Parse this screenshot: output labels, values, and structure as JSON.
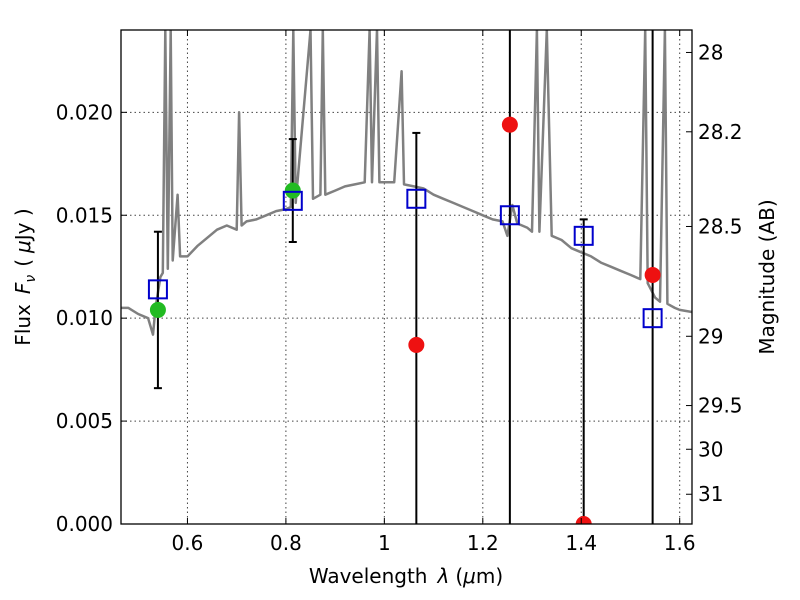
{
  "chart_data": {
    "type": "scatter",
    "xlabel_main": "Wavelength",
    "xlabel_symbol": "λ",
    "xlabel_unit_open": "(",
    "xlabel_unit_mu": "μ",
    "xlabel_unit_rest": "m)",
    "ylabel_main": "Flux",
    "ylabel_symbol": "F",
    "ylabel_subscript": "ν",
    "ylabel_unit_open": "(",
    "ylabel_unit_mu": "μ",
    "ylabel_unit_rest": "Jy )",
    "y2label": "Magnitude (AB)",
    "xlim": [
      0.465,
      1.625
    ],
    "ylim": [
      0.0,
      0.024
    ],
    "grid": true,
    "x_ticks": [
      {
        "value": 0.6,
        "label": "0.6"
      },
      {
        "value": 0.8,
        "label": "0.8"
      },
      {
        "value": 1.0,
        "label": "1"
      },
      {
        "value": 1.2,
        "label": "1.2"
      },
      {
        "value": 1.4,
        "label": "1.4"
      },
      {
        "value": 1.6,
        "label": "1.6"
      }
    ],
    "y_ticks": [
      {
        "value": 0.0,
        "label": "0.000"
      },
      {
        "value": 0.005,
        "label": "0.005"
      },
      {
        "value": 0.01,
        "label": "0.010"
      },
      {
        "value": 0.015,
        "label": "0.015"
      },
      {
        "value": 0.02,
        "label": "0.020"
      }
    ],
    "y2_ticks": [
      {
        "value": 28,
        "label": "28"
      },
      {
        "value": 28.2,
        "label": "28.2"
      },
      {
        "value": 28.5,
        "label": "28.5"
      },
      {
        "value": 29,
        "label": "29"
      },
      {
        "value": 29.5,
        "label": "29.5"
      },
      {
        "value": 30,
        "label": "30"
      },
      {
        "value": 31,
        "label": "31"
      }
    ],
    "model_points": [
      {
        "x": 0.54,
        "y": 0.0114
      },
      {
        "x": 0.814,
        "y": 0.0157
      },
      {
        "x": 1.065,
        "y": 0.0158
      },
      {
        "x": 1.255,
        "y": 0.015
      },
      {
        "x": 1.405,
        "y": 0.014
      },
      {
        "x": 1.545,
        "y": 0.01
      }
    ],
    "detections": [
      {
        "x": 0.54,
        "y": 0.0104
      },
      {
        "x": 0.814,
        "y": 0.0162
      }
    ],
    "upper_limits": [
      {
        "x": 1.065,
        "y": 0.0087
      },
      {
        "x": 1.255,
        "y": 0.0194
      },
      {
        "x": 1.405,
        "y": 0.0
      },
      {
        "x": 1.545,
        "y": 0.0121
      }
    ],
    "error_bars": [
      {
        "x": 0.54,
        "low": 0.0066,
        "high": 0.0142
      },
      {
        "x": 0.814,
        "low": 0.0137,
        "high": 0.0187
      },
      {
        "x": 1.065,
        "low": 0.0,
        "high": 0.019
      },
      {
        "x": 1.255,
        "low": 0.0,
        "high": 0.024
      },
      {
        "x": 1.405,
        "low": 0.0,
        "high": 0.0148
      },
      {
        "x": 1.545,
        "low": 0.0,
        "high": 0.024
      }
    ],
    "sed_spectrum": [
      [
        0.465,
        0.0105
      ],
      [
        0.48,
        0.0105
      ],
      [
        0.5,
        0.0102
      ],
      [
        0.52,
        0.01
      ],
      [
        0.53,
        0.0092
      ],
      [
        0.535,
        0.0105
      ],
      [
        0.545,
        0.012
      ],
      [
        0.55,
        0.0122
      ],
      [
        0.555,
        0.024
      ],
      [
        0.56,
        0.0124
      ],
      [
        0.566,
        0.024
      ],
      [
        0.57,
        0.0128
      ],
      [
        0.58,
        0.016
      ],
      [
        0.585,
        0.013
      ],
      [
        0.6,
        0.013
      ],
      [
        0.62,
        0.0135
      ],
      [
        0.64,
        0.0139
      ],
      [
        0.66,
        0.0143
      ],
      [
        0.68,
        0.0145
      ],
      [
        0.7,
        0.0143
      ],
      [
        0.705,
        0.02
      ],
      [
        0.71,
        0.0145
      ],
      [
        0.72,
        0.0147
      ],
      [
        0.74,
        0.0148
      ],
      [
        0.76,
        0.015
      ],
      [
        0.78,
        0.0152
      ],
      [
        0.8,
        0.0153
      ],
      [
        0.81,
        0.0154
      ],
      [
        0.815,
        0.024
      ],
      [
        0.82,
        0.0156
      ],
      [
        0.85,
        0.024
      ],
      [
        0.855,
        0.0158
      ],
      [
        0.87,
        0.016
      ],
      [
        0.875,
        0.024
      ],
      [
        0.88,
        0.016
      ],
      [
        0.9,
        0.0162
      ],
      [
        0.92,
        0.0164
      ],
      [
        0.94,
        0.0165
      ],
      [
        0.96,
        0.0166
      ],
      [
        0.97,
        0.024
      ],
      [
        0.975,
        0.0166
      ],
      [
        0.985,
        0.024
      ],
      [
        0.99,
        0.0166
      ],
      [
        1.0,
        0.0166
      ],
      [
        1.02,
        0.0166
      ],
      [
        1.035,
        0.022
      ],
      [
        1.04,
        0.0165
      ],
      [
        1.06,
        0.0164
      ],
      [
        1.08,
        0.0163
      ],
      [
        1.1,
        0.016
      ],
      [
        1.12,
        0.0158
      ],
      [
        1.14,
        0.0156
      ],
      [
        1.16,
        0.0154
      ],
      [
        1.18,
        0.0152
      ],
      [
        1.2,
        0.015
      ],
      [
        1.22,
        0.0148
      ],
      [
        1.24,
        0.0147
      ],
      [
        1.25,
        0.014
      ],
      [
        1.26,
        0.0155
      ],
      [
        1.27,
        0.0146
      ],
      [
        1.29,
        0.0144
      ],
      [
        1.3,
        0.0142
      ],
      [
        1.31,
        0.024
      ],
      [
        1.315,
        0.0142
      ],
      [
        1.33,
        0.024
      ],
      [
        1.34,
        0.014
      ],
      [
        1.36,
        0.0138
      ],
      [
        1.38,
        0.0134
      ],
      [
        1.4,
        0.0132
      ],
      [
        1.42,
        0.013
      ],
      [
        1.44,
        0.0127
      ],
      [
        1.46,
        0.0125
      ],
      [
        1.48,
        0.0123
      ],
      [
        1.5,
        0.0121
      ],
      [
        1.52,
        0.0119
      ],
      [
        1.53,
        0.024
      ],
      [
        1.535,
        0.0117
      ],
      [
        1.55,
        0.011
      ],
      [
        1.56,
        0.0108
      ],
      [
        1.57,
        0.024
      ],
      [
        1.575,
        0.0107
      ],
      [
        1.59,
        0.0105
      ],
      [
        1.6,
        0.0104
      ],
      [
        1.625,
        0.0103
      ]
    ]
  }
}
